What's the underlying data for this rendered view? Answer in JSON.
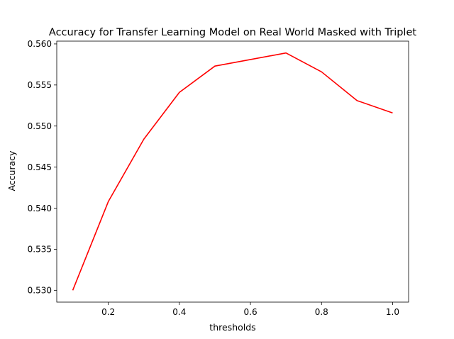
{
  "chart_data": {
    "type": "line",
    "title": "Accuracy for Transfer Learning Model on Real World Masked with Triplet",
    "xlabel": "thresholds",
    "ylabel": "Accuracy",
    "x": [
      0.1,
      0.2,
      0.3,
      0.4,
      0.5,
      0.6,
      0.7,
      0.8,
      0.9,
      1.0
    ],
    "series": [
      {
        "name": "accuracy",
        "color": "#ff0000",
        "values": [
          0.53,
          0.5408,
          0.5484,
          0.5541,
          0.5573,
          0.5581,
          0.5589,
          0.5566,
          0.5531,
          0.5516
        ]
      }
    ],
    "xlim": [
      0.055,
      1.045
    ],
    "ylim": [
      0.52856,
      0.56034
    ],
    "xticks": [
      0.2,
      0.4,
      0.6,
      0.8,
      1.0
    ],
    "xtick_labels": [
      "0.2",
      "0.4",
      "0.6",
      "0.8",
      "1.0"
    ],
    "yticks": [
      0.53,
      0.535,
      0.54,
      0.545,
      0.55,
      0.555,
      0.56
    ],
    "ytick_labels": [
      "0.530",
      "0.535",
      "0.540",
      "0.545",
      "0.550",
      "0.555",
      "0.560"
    ],
    "grid": false,
    "legend": "none"
  }
}
